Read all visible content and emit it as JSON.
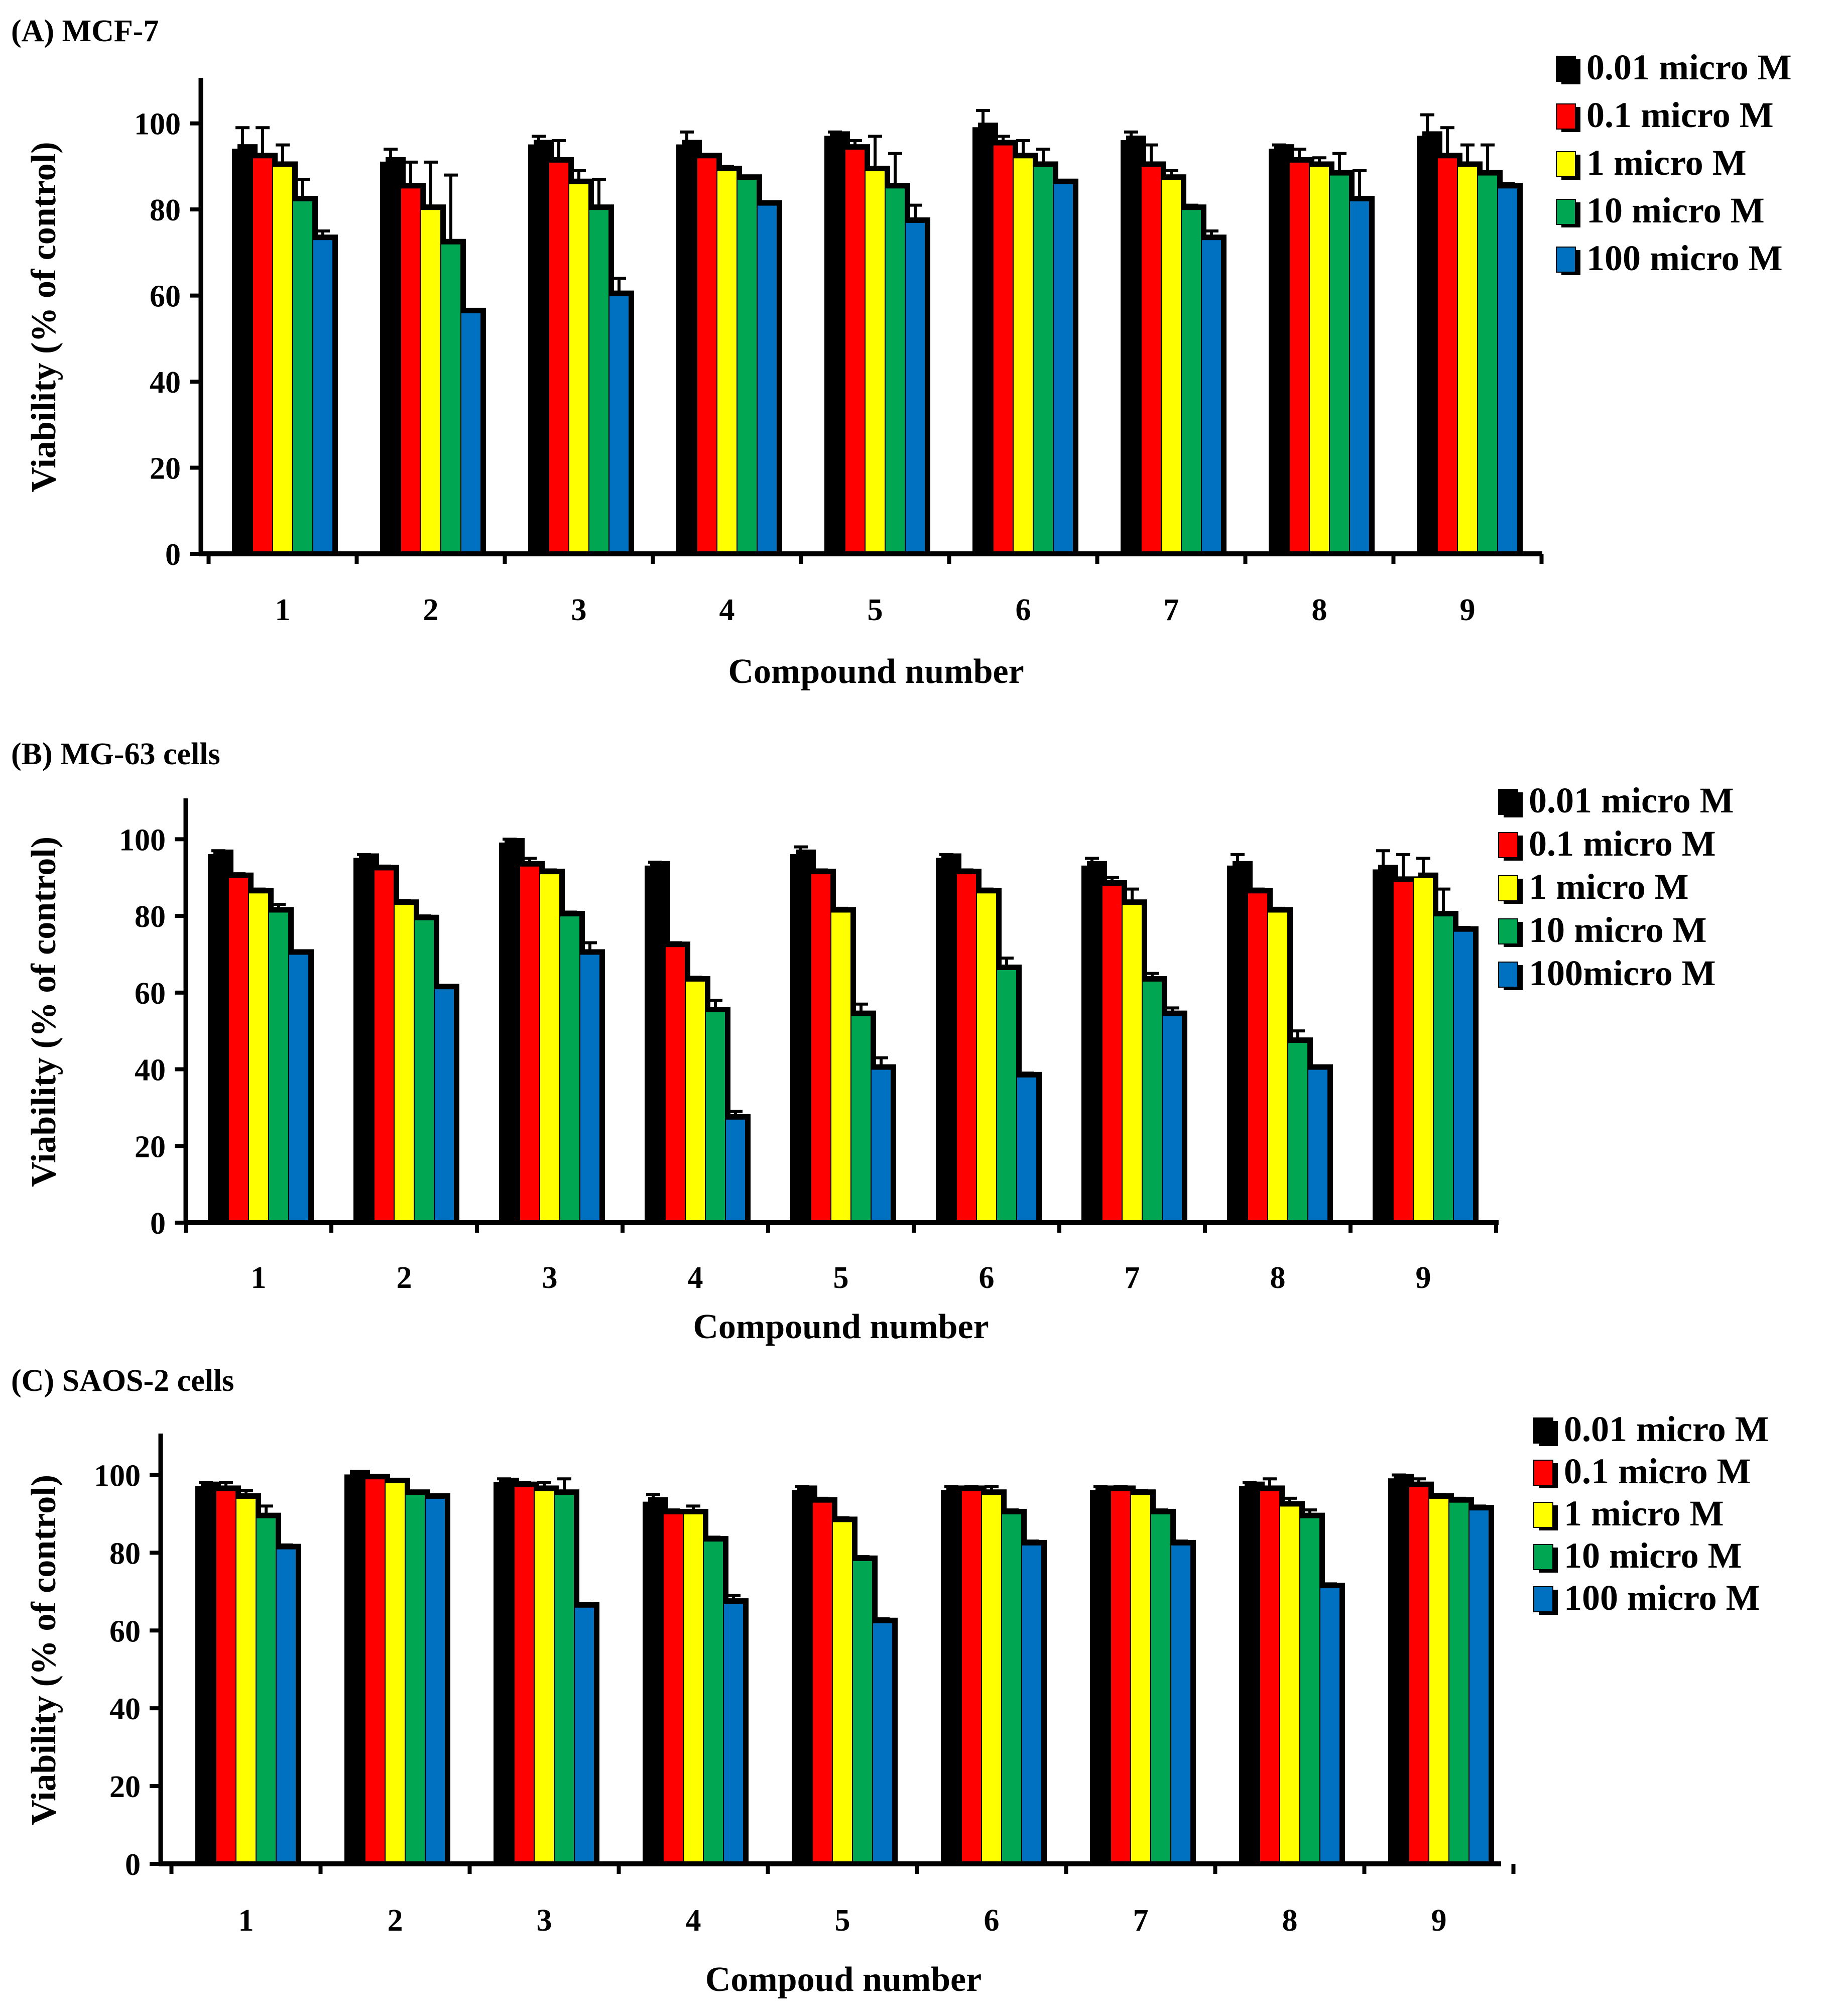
{
  "chart_data": [
    {
      "type": "bar",
      "title": "(A) MCF-7",
      "xlabel": "Compound number",
      "ylabel": "Viability (% of control)",
      "ylim": [
        0,
        110
      ],
      "yticks": [
        0,
        20,
        40,
        60,
        80,
        100
      ],
      "categories": [
        "1",
        "2",
        "3",
        "4",
        "5",
        "6",
        "7",
        "8",
        "9"
      ],
      "legend_position": "top-right",
      "series": [
        {
          "name": "0.01 micro M",
          "color": "#000000",
          "values": [
            94,
            91,
            95,
            95,
            97,
            99,
            96,
            94,
            97
          ],
          "errors": [
            5,
            3,
            2,
            3,
            1,
            4,
            2,
            1,
            5
          ]
        },
        {
          "name": "0.1 micro M",
          "color": "#ff0000",
          "values": [
            92,
            85,
            91,
            92,
            94,
            95,
            90,
            91,
            92
          ],
          "errors": [
            7,
            6,
            5,
            0,
            2,
            2,
            5,
            3,
            7
          ]
        },
        {
          "name": "1 micro M",
          "color": "#ffff00",
          "values": [
            90,
            80,
            86,
            89,
            89,
            92,
            87,
            90,
            90
          ],
          "errors": [
            5,
            11,
            3,
            1,
            8,
            4,
            2,
            2,
            5
          ]
        },
        {
          "name": "10 micro M",
          "color": "#00a651",
          "values": [
            82,
            72,
            80,
            87,
            85,
            90,
            80,
            88,
            88
          ],
          "errors": [
            5,
            16,
            7,
            0,
            8,
            4,
            1,
            5,
            7
          ]
        },
        {
          "name": "100 micro M",
          "color": "#0070c0",
          "values": [
            73,
            56,
            60,
            81,
            77,
            86,
            73,
            82,
            85
          ],
          "errors": [
            2,
            0,
            4,
            0,
            4,
            0,
            2,
            7,
            1
          ]
        }
      ]
    },
    {
      "type": "bar",
      "title": "(B) MG-63 cells",
      "xlabel": "Compound number",
      "ylabel": "Viability (% of control)",
      "ylim": [
        0,
        110
      ],
      "yticks": [
        0,
        20,
        40,
        60,
        80,
        100
      ],
      "categories": [
        "1",
        "2",
        "3",
        "4",
        "5",
        "6",
        "7",
        "8",
        "9"
      ],
      "legend_position": "top-right",
      "series": [
        {
          "name": "0.01 micro M",
          "color": "#000000",
          "values": [
            96,
            95,
            99,
            93,
            96,
            95,
            93,
            93,
            92
          ],
          "errors": [
            1,
            1,
            1,
            1,
            2,
            1,
            2,
            3,
            5
          ]
        },
        {
          "name": "0.1 micro M",
          "color": "#ff0000",
          "values": [
            90,
            92,
            93,
            72,
            91,
            91,
            88,
            86,
            89
          ],
          "errors": [
            1,
            1,
            2,
            1,
            1,
            1,
            2,
            1,
            7
          ]
        },
        {
          "name": "1 micro M",
          "color": "#ffff00",
          "values": [
            86,
            83,
            91,
            63,
            81,
            86,
            83,
            81,
            90
          ],
          "errors": [
            1,
            1,
            1,
            1,
            1,
            1,
            4,
            1,
            5
          ]
        },
        {
          "name": "10 micro M",
          "color": "#00a651",
          "values": [
            81,
            79,
            80,
            55,
            54,
            66,
            63,
            47,
            80
          ],
          "errors": [
            2,
            1,
            1,
            3,
            3,
            3,
            2,
            3,
            7
          ]
        },
        {
          "name": "100micro M",
          "color": "#0070c0",
          "values": [
            70,
            61,
            70,
            27,
            40,
            38,
            54,
            40,
            76
          ],
          "errors": [
            0,
            0,
            3,
            2,
            3,
            1,
            2,
            0,
            1
          ]
        }
      ]
    },
    {
      "type": "bar",
      "title": "(C) SAOS-2 cells",
      "xlabel": "Compoud number",
      "ylabel": "Viability (% of control)",
      "ylim": [
        0,
        110
      ],
      "yticks": [
        0,
        20,
        40,
        60,
        80,
        100
      ],
      "categories": [
        "1",
        "2",
        "3",
        "4",
        "5",
        "6",
        "7",
        "8",
        "9"
      ],
      "legend_position": "top-right",
      "series": [
        {
          "name": "0.01 micro M",
          "color": "#000000",
          "values": [
            97,
            100,
            98,
            93,
            96,
            96,
            96,
            97,
            99
          ],
          "errors": [
            1,
            0,
            1,
            2,
            1,
            1,
            1,
            1,
            1
          ]
        },
        {
          "name": "0.1 micro M",
          "color": "#ff0000",
          "values": [
            96,
            99,
            97,
            90,
            93,
            96,
            96,
            96,
            97
          ],
          "errors": [
            2,
            0,
            1,
            1,
            1,
            1,
            1,
            3,
            2
          ]
        },
        {
          "name": "1 micro M",
          "color": "#ffff00",
          "values": [
            94,
            98,
            96,
            90,
            88,
            95,
            95,
            92,
            94
          ],
          "errors": [
            2,
            0,
            2,
            2,
            1,
            2,
            1,
            2,
            1
          ]
        },
        {
          "name": "10 micro M",
          "color": "#00a651",
          "values": [
            89,
            95,
            95,
            83,
            78,
            90,
            90,
            89,
            93
          ],
          "errors": [
            3,
            0,
            4,
            1,
            1,
            1,
            1,
            2,
            1
          ]
        },
        {
          "name": "100 micro M",
          "color": "#0070c0",
          "values": [
            81,
            94,
            66,
            67,
            62,
            82,
            82,
            71,
            91
          ],
          "errors": [
            1,
            0,
            1,
            2,
            1,
            1,
            1,
            1,
            1
          ]
        }
      ]
    }
  ]
}
